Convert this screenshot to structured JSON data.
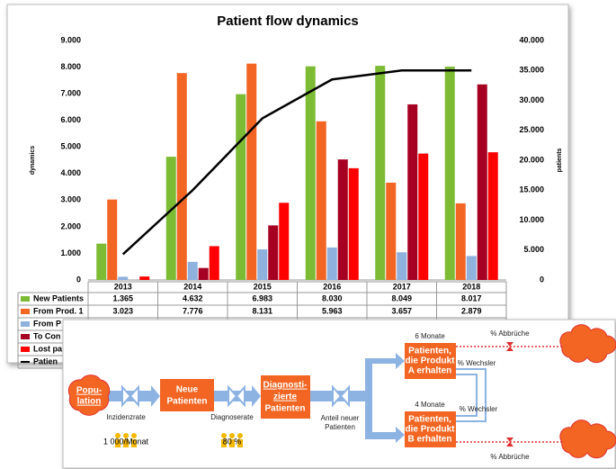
{
  "chart_data": {
    "type": "bar",
    "title": "Patient flow dynamics",
    "y_label": "dynamics",
    "y2_label": "patients",
    "categories": [
      "2013",
      "2014",
      "2015",
      "2016",
      "2017",
      "2018"
    ],
    "series": [
      {
        "name": "New Patients",
        "color": "#7dbb35",
        "values": [
          1365,
          4632,
          6983,
          8030,
          8049,
          8017
        ],
        "value_labels": [
          "1.365",
          "4.632",
          "6.983",
          "8.030",
          "8.049",
          "8.017"
        ]
      },
      {
        "name": "From Prod. 1",
        "color": "#f26522",
        "values": [
          3023,
          7776,
          8131,
          5963,
          3657,
          2879
        ],
        "value_labels": [
          "3.023",
          "7.776",
          "8.131",
          "5.963",
          "3.657",
          "2.879"
        ]
      },
      {
        "name": "From P",
        "color": "#8eb1de",
        "values": [
          120,
          680,
          1150,
          1220,
          1040,
          900
        ]
      },
      {
        "name": "To Con",
        "color": "#a50021",
        "values": [
          0,
          450,
          2050,
          4530,
          6600,
          7350
        ]
      },
      {
        "name": "Lost pa",
        "color": "#ff0000",
        "values": [
          130,
          1270,
          2900,
          4200,
          4750,
          4800
        ]
      },
      {
        "name": "Patien",
        "color": "#000000",
        "type": "line",
        "axis": "y2",
        "values": [
          4300,
          15000,
          27000,
          33500,
          35000,
          35000
        ]
      }
    ],
    "ylim": [
      0,
      9000
    ],
    "yticks": [
      0,
      {
        "value": 1000,
        "label": "1.000"
      },
      {
        "value": 2000,
        "label": "2.000"
      },
      {
        "value": 3000,
        "label": "3.000"
      },
      {
        "value": 4000,
        "label": "4.000"
      },
      {
        "value": 5000,
        "label": "5.000"
      },
      {
        "value": 6000,
        "label": "6.000"
      },
      {
        "value": 7000,
        "label": "7.000"
      },
      {
        "value": 8000,
        "label": "8.000"
      },
      {
        "value": 9000,
        "label": "9.000"
      }
    ],
    "y2lim": [
      0,
      40000
    ],
    "y2ticks": [
      0,
      {
        "value": 5000,
        "label": "5.000"
      },
      {
        "value": 10000,
        "label": "10.000"
      },
      {
        "value": 15000,
        "label": "15.000"
      },
      {
        "value": 20000,
        "label": "20.000"
      },
      {
        "value": 25000,
        "label": "25.000"
      },
      {
        "value": 30000,
        "label": "30.000"
      },
      {
        "value": 35000,
        "label": "35.000"
      },
      {
        "value": 40000,
        "label": "40.000"
      }
    ],
    "grid": false
  },
  "diagram": {
    "population": [
      "Popu-",
      "lation"
    ],
    "new_patients": [
      "Neue",
      "Patienten"
    ],
    "diagnosed": [
      "Diagnosti-",
      "zierte",
      "Patienten"
    ],
    "product_a": [
      "Patienten,",
      "die Produkt",
      "A erhalten"
    ],
    "product_b": [
      "Patienten,",
      "die Produkt",
      "B erhalten"
    ],
    "incidence": "Inzidenzrate",
    "diagnosis_rate": "Diagnoserate",
    "share": [
      "Anteil neuer",
      "Patienten"
    ],
    "incidence_value": "1 000/Monat",
    "diagnosis_value": "80 %",
    "months_a": "6 Monate",
    "months_b": "4 Monate",
    "dropout_a": "% Abbrüche",
    "dropout_b": "% Abbrüche",
    "switch_a": "% Wechsler",
    "switch_b": "% Wechsler"
  }
}
